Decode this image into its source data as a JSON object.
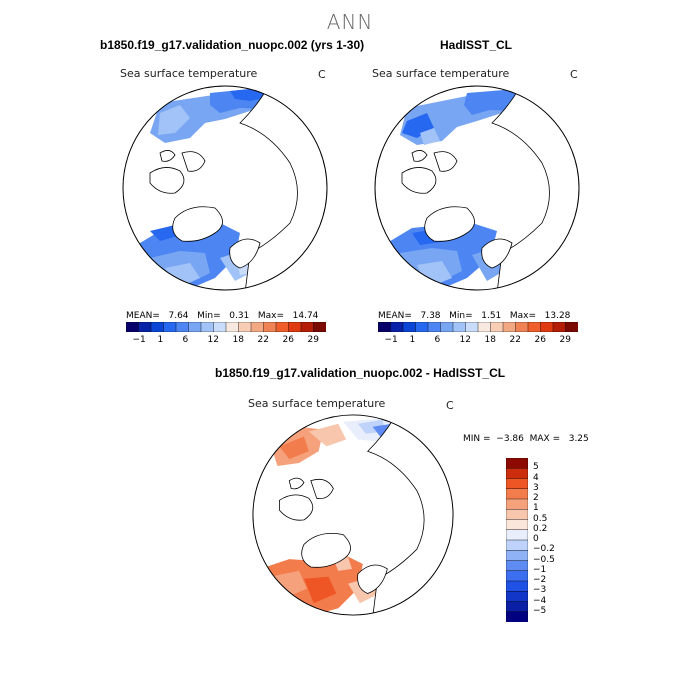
{
  "title": "ANN",
  "colors": {
    "land": "#ffffff",
    "coast": "#000000",
    "sst_scale": [
      "#08006a",
      "#0822a8",
      "#0a45d6",
      "#2768f0",
      "#4d86f2",
      "#78a6f2",
      "#a2c3f7",
      "#c9dcfa",
      "#f7e8e0",
      "#f8cdb6",
      "#f2a882",
      "#ef8356",
      "#ef5f2c",
      "#e03a10",
      "#b41e06",
      "#7a0a02"
    ],
    "diff_scale": [
      "#000080",
      "#0a1fa3",
      "#1236c8",
      "#1f52e4",
      "#3c6ff0",
      "#5e8cf3",
      "#8fb1f6",
      "#bfd3fa",
      "#e8eefc",
      "#fbe6dc",
      "#f8c6ac",
      "#f5a27c",
      "#f27c4c",
      "#ee5626",
      "#cc2d0c",
      "#8c0a02"
    ]
  },
  "panels": [
    {
      "title": "b1850.f19_g17.validation_nuopc.002 (yrs 1-30)",
      "variable": "Sea surface temperature",
      "units": "C",
      "stats": {
        "mean_label": "MEAN=",
        "mean": "7.64",
        "min_label": "Min=",
        "min": "0.31",
        "max_label": "Max=",
        "max": "14.74"
      },
      "colorbar_labels": [
        "−1",
        "1",
        "6",
        "12",
        "18",
        "22",
        "26",
        "29"
      ]
    },
    {
      "title": "HadISST_CL",
      "variable": "Sea surface temperature",
      "units": "C",
      "stats": {
        "mean_label": "MEAN=",
        "mean": "7.38",
        "min_label": "Min=",
        "min": "1.51",
        "max_label": "Max=",
        "max": "13.28"
      },
      "colorbar_labels": [
        "−1",
        "1",
        "6",
        "12",
        "18",
        "22",
        "26",
        "29"
      ]
    },
    {
      "title": "b1850.f19_g17.validation_nuopc.002 - HadISST_CL",
      "variable": "Sea surface temperature",
      "units": "C",
      "stats": {
        "min_label": "MIN =",
        "min": "−3.86",
        "max_label": "MAX =",
        "max": "3.25"
      },
      "colorbar_labels": [
        "5",
        "4",
        "3",
        "2",
        "1",
        "0.5",
        "0.2",
        "0",
        "−0.2",
        "−0.5",
        "−1",
        "−2",
        "−3",
        "−4",
        "−5"
      ]
    }
  ]
}
